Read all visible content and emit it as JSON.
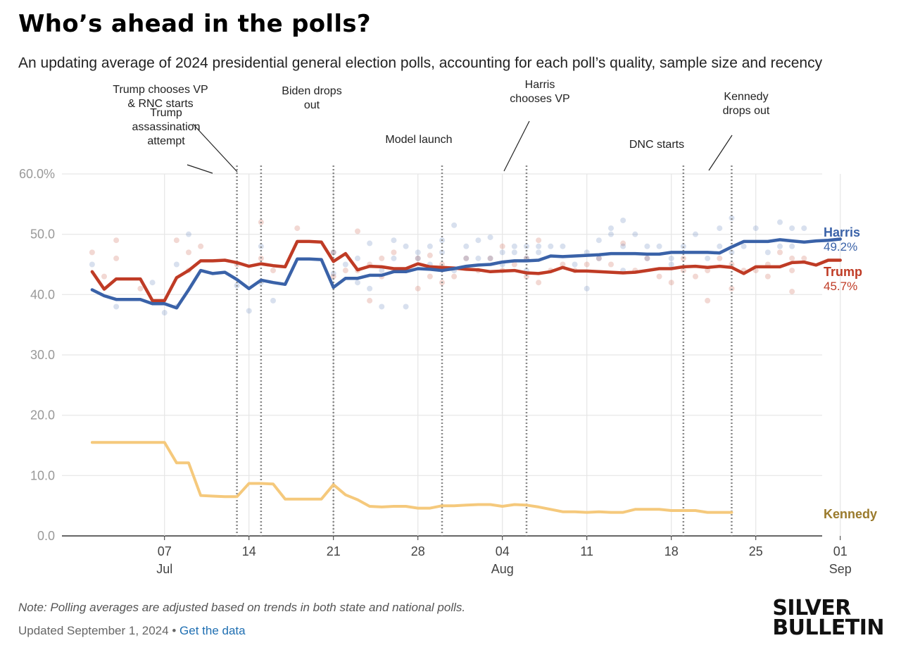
{
  "header": {
    "title": "Who’s ahead in the polls?",
    "subtitle": "An updating average of 2024 presidential general election polls, accounting for each poll’s quality, sample size and recency"
  },
  "footer": {
    "note": "Note: Polling averages are adjusted based on trends in both state and national polls.",
    "updated": "Updated September 1, 2024",
    "separator": "•",
    "data_link": "Get the data"
  },
  "brand": {
    "line1": "SILVER",
    "line2": "BULLETIN"
  },
  "colors": {
    "harris": "#3a62a8",
    "trump": "#bf3b25",
    "kennedy": "#f5c97c",
    "kennedy_label": "#9a7a2c",
    "grid": "#e6e6e6",
    "event_line": "#888888"
  },
  "chart_data": {
    "type": "line",
    "title": "Who’s ahead in the polls?",
    "xlabel": "",
    "ylabel": "",
    "ylim": [
      0,
      60
    ],
    "xlim": [
      -8.5,
      54.5
    ],
    "x_unit": "days since 2024-07-07",
    "y_ticks": [
      {
        "value": 0,
        "label": "0.0"
      },
      {
        "value": 10,
        "label": "10.0"
      },
      {
        "value": 20,
        "label": "20.0"
      },
      {
        "value": 30,
        "label": "30.0"
      },
      {
        "value": 40,
        "label": "40.0"
      },
      {
        "value": 50,
        "label": "50.0"
      },
      {
        "value": 60,
        "label": "60.0%"
      }
    ],
    "x_ticks": [
      {
        "day": 0,
        "label": "07",
        "month": "Jul"
      },
      {
        "day": 7,
        "label": "14",
        "month": ""
      },
      {
        "day": 14,
        "label": "21",
        "month": ""
      },
      {
        "day": 21,
        "label": "28",
        "month": ""
      },
      {
        "day": 28,
        "label": "04",
        "month": "Aug"
      },
      {
        "day": 35,
        "label": "11",
        "month": ""
      },
      {
        "day": 42,
        "label": "18",
        "month": ""
      },
      {
        "day": 49,
        "label": "25",
        "month": ""
      },
      {
        "day": 56,
        "label": "01",
        "month": "Sep"
      }
    ],
    "events": [
      {
        "day": 6,
        "lines": [
          "Trump",
          "assassination",
          "attempt"
        ]
      },
      {
        "day": 8,
        "lines": [
          "Trump chooses VP",
          "& RNC starts"
        ]
      },
      {
        "day": 14,
        "lines": [
          "Biden drops",
          "out"
        ]
      },
      {
        "day": 23,
        "lines": [
          "Model launch"
        ]
      },
      {
        "day": 30,
        "lines": [
          "Harris",
          "chooses VP"
        ]
      },
      {
        "day": 43,
        "lines": [
          "DNC starts"
        ]
      },
      {
        "day": 47,
        "lines": [
          "Kennedy",
          "drops out"
        ]
      }
    ],
    "series": [
      {
        "name": "Harris",
        "final_label": "49.2%",
        "color": "#3a62a8",
        "x": [
          -6,
          -5,
          -4,
          -3,
          -2,
          -1,
          0,
          1,
          2,
          3,
          4,
          5,
          6,
          7,
          8,
          9,
          10,
          11,
          12,
          13,
          14,
          15,
          16,
          17,
          18,
          19,
          20,
          21,
          22,
          23,
          24,
          25,
          26,
          27,
          28,
          29,
          30,
          31,
          32,
          33,
          34,
          35,
          36,
          37,
          38,
          39,
          40,
          41,
          42,
          43,
          44,
          45,
          46,
          47,
          48,
          49,
          50,
          51,
          52,
          53,
          54,
          55,
          56
        ],
        "values": [
          40.8,
          39.8,
          39.2,
          39.2,
          39.2,
          38.5,
          38.5,
          37.8,
          40.8,
          44.0,
          43.5,
          43.7,
          42.5,
          41.0,
          42.4,
          42.0,
          41.7,
          45.9,
          45.9,
          45.8,
          41.2,
          42.7,
          42.7,
          43.2,
          43.2,
          43.8,
          43.8,
          44.3,
          44.2,
          44.0,
          44.3,
          44.7,
          44.9,
          45.0,
          45.4,
          45.6,
          45.6,
          45.7,
          46.4,
          46.3,
          46.4,
          46.5,
          46.6,
          46.8,
          46.8,
          46.8,
          46.7,
          46.7,
          47.0,
          47.0,
          47.0,
          47.0,
          46.9,
          47.9,
          48.8,
          48.8,
          48.8,
          49.1,
          48.9,
          48.7,
          48.9,
          49.0,
          49.2
        ]
      },
      {
        "name": "Trump",
        "final_label": "45.7%",
        "color": "#bf3b25",
        "x": [
          -6,
          -5,
          -4,
          -3,
          -2,
          -1,
          0,
          1,
          2,
          3,
          4,
          5,
          6,
          7,
          8,
          9,
          10,
          11,
          12,
          13,
          14,
          15,
          16,
          17,
          18,
          19,
          20,
          21,
          22,
          23,
          24,
          25,
          26,
          27,
          28,
          29,
          30,
          31,
          32,
          33,
          34,
          35,
          36,
          37,
          38,
          39,
          40,
          41,
          42,
          43,
          44,
          45,
          46,
          47,
          48,
          49,
          50,
          51,
          52,
          53,
          54,
          55,
          56
        ],
        "values": [
          43.8,
          40.9,
          42.6,
          42.6,
          42.6,
          39.0,
          39.0,
          42.8,
          44.0,
          45.6,
          45.6,
          45.7,
          45.3,
          44.7,
          45.1,
          44.8,
          44.6,
          48.8,
          48.8,
          48.7,
          45.5,
          46.8,
          44.1,
          44.7,
          44.6,
          44.3,
          44.3,
          45.1,
          44.6,
          44.5,
          44.4,
          44.2,
          44.1,
          43.8,
          43.9,
          44.0,
          43.6,
          43.5,
          43.8,
          44.5,
          43.9,
          43.9,
          43.8,
          43.7,
          43.6,
          43.7,
          44.0,
          44.3,
          44.3,
          44.6,
          44.7,
          44.5,
          44.7,
          44.5,
          43.5,
          44.6,
          44.6,
          44.6,
          45.3,
          45.4,
          44.9,
          45.7,
          45.7
        ]
      },
      {
        "name": "Kennedy",
        "final_label": "",
        "color": "#f5c97c",
        "x": [
          -6,
          -5,
          -4,
          -3,
          -2,
          -1,
          0,
          1,
          2,
          3,
          4,
          5,
          6,
          7,
          8,
          9,
          10,
          11,
          12,
          13,
          14,
          15,
          16,
          17,
          18,
          19,
          20,
          21,
          22,
          23,
          24,
          25,
          26,
          27,
          28,
          29,
          30,
          31,
          32,
          33,
          34,
          35,
          36,
          37,
          38,
          39,
          40,
          41,
          42,
          43,
          44,
          45,
          46,
          47
        ],
        "values": [
          15.5,
          15.5,
          15.5,
          15.5,
          15.5,
          15.5,
          15.5,
          12.1,
          12.1,
          6.7,
          6.6,
          6.5,
          6.5,
          8.7,
          8.7,
          8.6,
          6.1,
          6.1,
          6.1,
          6.1,
          8.5,
          6.8,
          6.0,
          4.9,
          4.8,
          4.9,
          4.9,
          4.6,
          4.6,
          5.0,
          5.0,
          5.1,
          5.2,
          5.2,
          4.9,
          5.2,
          5.1,
          4.8,
          4.4,
          4.0,
          4.0,
          3.9,
          4.0,
          3.9,
          3.9,
          4.4,
          4.4,
          4.4,
          4.2,
          4.2,
          4.2,
          3.9,
          3.9,
          3.9
        ]
      }
    ],
    "poll_dots": {
      "harris": [
        [
          -6,
          45.0
        ],
        [
          -4,
          38.0
        ],
        [
          -1,
          42.0
        ],
        [
          0,
          37.0
        ],
        [
          1,
          45.0
        ],
        [
          2,
          50.0
        ],
        [
          1,
          38.0
        ],
        [
          6,
          41.5
        ],
        [
          7,
          37.3
        ],
        [
          8,
          48.0
        ],
        [
          8,
          42.0
        ],
        [
          9,
          39.0
        ],
        [
          14,
          43.5
        ],
        [
          14,
          47.0
        ],
        [
          15,
          45.0
        ],
        [
          16,
          46.0
        ],
        [
          16,
          42.0
        ],
        [
          17,
          48.5
        ],
        [
          17,
          41.0
        ],
        [
          18,
          44.0
        ],
        [
          18,
          38.0
        ],
        [
          19,
          46.0
        ],
        [
          19,
          49.0
        ],
        [
          20,
          48.0
        ],
        [
          20,
          44.0
        ],
        [
          20,
          38.0
        ],
        [
          21,
          46.0
        ],
        [
          21,
          47.0
        ],
        [
          22,
          48.0
        ],
        [
          22,
          45.0
        ],
        [
          23,
          47.0
        ],
        [
          23,
          49.0
        ],
        [
          24,
          44.0
        ],
        [
          24,
          51.5
        ],
        [
          25,
          46.0
        ],
        [
          25,
          48.0
        ],
        [
          26,
          46.0
        ],
        [
          26,
          49.0
        ],
        [
          27,
          46.0
        ],
        [
          27,
          49.5
        ],
        [
          28,
          47.0
        ],
        [
          28,
          45.0
        ],
        [
          29,
          48.0
        ],
        [
          29,
          47.0
        ],
        [
          30,
          48.0
        ],
        [
          30,
          46.0
        ],
        [
          30,
          44.0
        ],
        [
          31,
          48.0
        ],
        [
          31,
          47.0
        ],
        [
          32,
          48.0
        ],
        [
          33,
          48.0
        ],
        [
          34,
          45.0
        ],
        [
          35,
          41.0
        ],
        [
          35,
          47.0
        ],
        [
          36,
          46.0
        ],
        [
          36,
          49.0
        ],
        [
          37,
          51.0
        ],
        [
          37,
          50.0
        ],
        [
          38,
          52.3
        ],
        [
          38,
          48.0
        ],
        [
          38,
          44.0
        ],
        [
          39,
          50.0
        ],
        [
          40,
          46.0
        ],
        [
          40,
          48.0
        ],
        [
          41,
          48.0
        ],
        [
          42,
          46.0
        ],
        [
          42,
          45.0
        ],
        [
          43,
          48.0
        ],
        [
          44,
          50.0
        ],
        [
          45,
          46.0
        ],
        [
          46,
          48.0
        ],
        [
          46,
          51.0
        ],
        [
          47,
          52.7
        ],
        [
          47,
          47.0
        ],
        [
          48,
          48.0
        ],
        [
          49,
          51.0
        ],
        [
          50,
          47.0
        ],
        [
          51,
          52.0
        ],
        [
          51,
          48.0
        ],
        [
          52,
          51.0
        ],
        [
          52,
          48.0
        ],
        [
          53,
          51.0
        ]
      ],
      "trump": [
        [
          -6,
          47.0
        ],
        [
          -5,
          43.0
        ],
        [
          -4,
          49.0
        ],
        [
          -4,
          46.0
        ],
        [
          -2,
          41.0
        ],
        [
          1,
          49.0
        ],
        [
          2,
          47.0
        ],
        [
          2,
          44.0
        ],
        [
          3,
          48.0
        ],
        [
          6,
          45.0
        ],
        [
          8,
          52.0
        ],
        [
          8,
          46.0
        ],
        [
          9,
          44.0
        ],
        [
          11,
          51.0
        ],
        [
          14,
          47.0
        ],
        [
          14,
          43.0
        ],
        [
          15,
          44.0
        ],
        [
          16,
          50.5
        ],
        [
          16,
          44.0
        ],
        [
          17,
          45.0
        ],
        [
          17,
          39.0
        ],
        [
          18,
          43.0
        ],
        [
          18,
          46.0
        ],
        [
          19,
          47.0
        ],
        [
          19,
          44.0
        ],
        [
          20,
          44.0
        ],
        [
          21,
          41.0
        ],
        [
          21,
          46.0
        ],
        [
          22,
          43.0
        ],
        [
          22,
          46.5
        ],
        [
          23,
          42.0
        ],
        [
          23,
          45.0
        ],
        [
          24,
          43.0
        ],
        [
          25,
          46.0
        ],
        [
          26,
          44.0
        ],
        [
          27,
          46.0
        ],
        [
          28,
          48.0
        ],
        [
          28,
          44.0
        ],
        [
          29,
          45.0
        ],
        [
          30,
          43.0
        ],
        [
          30,
          46.0
        ],
        [
          31,
          49.0
        ],
        [
          31,
          42.0
        ],
        [
          32,
          44.0
        ],
        [
          33,
          45.0
        ],
        [
          34,
          44.0
        ],
        [
          35,
          45.0
        ],
        [
          36,
          46.0
        ],
        [
          37,
          45.0
        ],
        [
          38,
          48.5
        ],
        [
          39,
          44.0
        ],
        [
          40,
          46.0
        ],
        [
          41,
          43.0
        ],
        [
          42,
          42.0
        ],
        [
          43,
          46.0
        ],
        [
          43,
          44.0
        ],
        [
          44,
          43.0
        ],
        [
          45,
          39.0
        ],
        [
          45,
          44.0
        ],
        [
          46,
          46.0
        ],
        [
          47,
          41.0
        ],
        [
          47,
          45.0
        ],
        [
          48,
          44.0
        ],
        [
          49,
          44.0
        ],
        [
          50,
          43.0
        ],
        [
          50,
          45.0
        ],
        [
          51,
          47.0
        ],
        [
          52,
          44.0
        ],
        [
          52,
          40.5
        ],
        [
          52,
          46.0
        ],
        [
          53,
          46.0
        ]
      ]
    }
  }
}
